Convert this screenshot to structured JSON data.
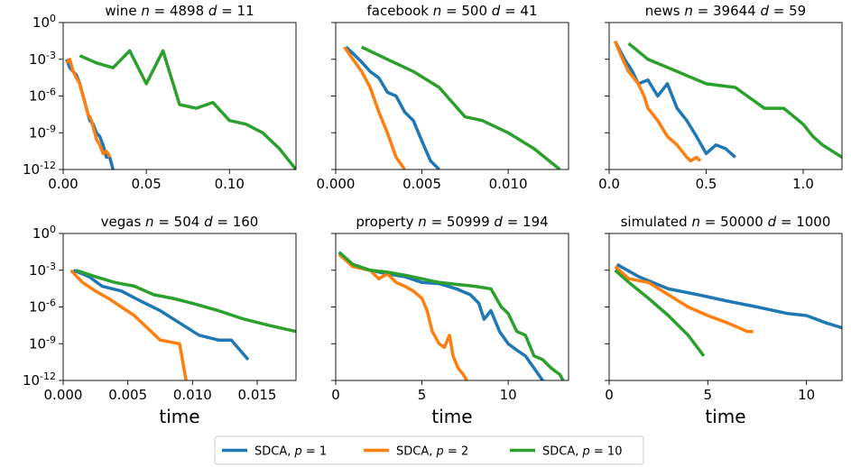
{
  "chart_data": [
    {
      "type": "line",
      "title": "wine n = 4898 d = 11",
      "title_parts": {
        "name": "wine ",
        "n": "4898",
        "d": "11"
      },
      "xlabel": "",
      "ylabel": "",
      "yscale": "log",
      "xlim": [
        0,
        0.14
      ],
      "ylim": [
        1e-12,
        1
      ],
      "xticks": [
        0,
        0.05,
        0.1
      ],
      "xtick_labels": [
        "0.00",
        "0.05",
        "0.10"
      ],
      "yticks": [
        1,
        0.001,
        1e-06,
        1e-09,
        1e-12
      ],
      "ytick_labels": [
        "10^0",
        "10^-3",
        "10^-6",
        "10^-9",
        "10^-12"
      ],
      "series": [
        {
          "color": "#1f77b4",
          "x": [
            0.002,
            0.004,
            0.006,
            0.008,
            0.01,
            0.012,
            0.014,
            0.016,
            0.018,
            0.02,
            0.022,
            0.024,
            0.026,
            0.028,
            0.03
          ],
          "y": [
            0.001,
            0.0002,
            0.0001,
            5e-05,
            1e-05,
            1e-06,
            1e-07,
            1e-08,
            5e-09,
            1e-09,
            5e-10,
            1e-10,
            1e-11,
            1e-11,
            1e-12
          ]
        },
        {
          "color": "#ff7f0e",
          "x": [
            0.002,
            0.004,
            0.006,
            0.008,
            0.01,
            0.012,
            0.013,
            0.014,
            0.015,
            0.016,
            0.017,
            0.018,
            0.019,
            0.02,
            0.022,
            0.024,
            0.026,
            0.027,
            0.028
          ],
          "y": [
            0.0005,
            0.001,
            0.0001,
            3e-05,
            1e-05,
            1e-06,
            3e-07,
            1e-07,
            3e-08,
            2e-08,
            1e-08,
            3e-09,
            1e-09,
            3e-10,
            1e-10,
            2e-11,
            3e-11,
            2e-11,
            1e-11
          ]
        },
        {
          "color": "#2ca02c",
          "x": [
            0.01,
            0.02,
            0.03,
            0.04,
            0.05,
            0.06,
            0.07,
            0.08,
            0.09,
            0.1,
            0.11,
            0.12,
            0.13,
            0.14
          ],
          "y": [
            0.002,
            0.0005,
            0.0002,
            0.005,
            1e-05,
            0.005,
            2e-07,
            1e-07,
            3e-07,
            1e-08,
            5e-09,
            1e-09,
            5e-11,
            1e-12
          ]
        }
      ]
    },
    {
      "type": "line",
      "title": "facebook n = 500 d = 41",
      "title_parts": {
        "name": "facebook ",
        "n": "500",
        "d": "41"
      },
      "xlabel": "",
      "ylabel": "",
      "yscale": "log",
      "xlim": [
        0,
        0.0135
      ],
      "ylim": [
        1e-12,
        1
      ],
      "xticks": [
        0,
        0.005,
        0.01
      ],
      "xtick_labels": [
        "0.000",
        "0.005",
        "0.010"
      ],
      "yticks": [
        1,
        0.001,
        1e-06,
        1e-09,
        1e-12
      ],
      "ytick_labels": [
        "",
        "",
        "",
        "",
        ""
      ],
      "series": [
        {
          "color": "#1f77b4",
          "x": [
            0.0006,
            0.001,
            0.0015,
            0.002,
            0.0025,
            0.003,
            0.0035,
            0.004,
            0.0045,
            0.005,
            0.0055,
            0.006
          ],
          "y": [
            0.01,
            0.003,
            0.0006,
            0.0001,
            3e-05,
            2e-06,
            1e-06,
            5e-08,
            1e-08,
            2e-10,
            5e-12,
            1e-12
          ]
        },
        {
          "color": "#ff7f0e",
          "x": [
            0.0005,
            0.001,
            0.0015,
            0.002,
            0.0025,
            0.003,
            0.0035,
            0.004
          ],
          "y": [
            0.01,
            0.001,
            0.0001,
            5e-06,
            5e-08,
            1e-09,
            1e-11,
            1e-12
          ]
        },
        {
          "color": "#2ca02c",
          "x": [
            0.0015,
            0.003,
            0.0045,
            0.006,
            0.0075,
            0.0085,
            0.01,
            0.0115,
            0.013
          ],
          "y": [
            0.01,
            0.001,
            0.0001,
            5e-06,
            2e-08,
            1e-08,
            1e-09,
            5e-11,
            1e-12
          ]
        }
      ]
    },
    {
      "type": "line",
      "title": "news n = 39644 d = 59",
      "title_parts": {
        "name": "news ",
        "n": "39644",
        "d": "59"
      },
      "xlabel": "",
      "ylabel": "",
      "yscale": "log",
      "xlim": [
        0,
        1.2
      ],
      "ylim": [
        1e-12,
        1
      ],
      "xticks": [
        0,
        0.5,
        1.0
      ],
      "xtick_labels": [
        "0.0",
        "0.5",
        "1.0"
      ],
      "yticks": [
        1,
        0.001,
        1e-06,
        1e-09,
        1e-12
      ],
      "ytick_labels": [
        "",
        "",
        "",
        "",
        ""
      ],
      "series": [
        {
          "color": "#1f77b4",
          "x": [
            0.03,
            0.08,
            0.12,
            0.15,
            0.2,
            0.25,
            0.3,
            0.35,
            0.4,
            0.45,
            0.5,
            0.55,
            0.6,
            0.65
          ],
          "y": [
            0.03,
            0.001,
            0.0001,
            1e-05,
            2e-05,
            1e-06,
            1e-05,
            1e-07,
            1e-08,
            5e-10,
            2e-11,
            1e-10,
            5e-11,
            1e-11
          ]
        },
        {
          "color": "#ff7f0e",
          "x": [
            0.03,
            0.07,
            0.1,
            0.15,
            0.18,
            0.2,
            0.25,
            0.3,
            0.35,
            0.4,
            0.42,
            0.45,
            0.47
          ],
          "y": [
            0.03,
            0.001,
            0.0001,
            1e-05,
            1e-06,
            1e-07,
            1e-08,
            5e-10,
            1e-10,
            1e-11,
            5e-12,
            1e-11,
            5e-12
          ]
        },
        {
          "color": "#2ca02c",
          "x": [
            0.1,
            0.2,
            0.35,
            0.5,
            0.65,
            0.8,
            0.9,
            1.0,
            1.05,
            1.1,
            1.2
          ],
          "y": [
            0.02,
            0.001,
            0.0001,
            1e-05,
            5e-06,
            1e-07,
            1e-07,
            5e-09,
            5e-10,
            1e-10,
            1e-11
          ]
        }
      ]
    },
    {
      "type": "line",
      "title": "vegas n = 504 d = 160",
      "title_parts": {
        "name": "vegas ",
        "n": "504",
        "d": "160"
      },
      "xlabel": "time",
      "ylabel": "",
      "yscale": "log",
      "xlim": [
        0,
        0.018
      ],
      "ylim": [
        1e-12,
        1
      ],
      "xticks": [
        0,
        0.005,
        0.01,
        0.015
      ],
      "xtick_labels": [
        "0.000",
        "0.005",
        "0.010",
        "0.015"
      ],
      "yticks": [
        1,
        0.001,
        1e-06,
        1e-09,
        1e-12
      ],
      "ytick_labels": [
        "10^0",
        "10^-3",
        "10^-6",
        "10^-9",
        "10^-12"
      ],
      "series": [
        {
          "color": "#1f77b4",
          "x": [
            0.0008,
            0.002,
            0.003,
            0.0045,
            0.006,
            0.0075,
            0.009,
            0.0105,
            0.012,
            0.013,
            0.0143
          ],
          "y": [
            0.001,
            0.0003,
            5e-05,
            2e-05,
            3e-06,
            5e-07,
            5e-08,
            5e-09,
            2e-09,
            2e-09,
            5e-11
          ]
        },
        {
          "color": "#ff7f0e",
          "x": [
            0.0006,
            0.0015,
            0.0025,
            0.0035,
            0.0045,
            0.0055,
            0.0065,
            0.0075,
            0.009,
            0.0095
          ],
          "y": [
            0.001,
            0.0001,
            2e-05,
            5e-06,
            1e-06,
            2e-07,
            2e-08,
            2e-09,
            1e-09,
            1e-12
          ]
        },
        {
          "color": "#2ca02c",
          "x": [
            0.001,
            0.0025,
            0.004,
            0.0055,
            0.007,
            0.0085,
            0.01,
            0.012,
            0.014,
            0.016,
            0.018
          ],
          "y": [
            0.001,
            0.0003,
            0.0001,
            5e-05,
            1e-05,
            5e-06,
            2e-06,
            5e-07,
            1e-07,
            3e-08,
            1e-08
          ]
        }
      ]
    },
    {
      "type": "line",
      "title": "property n = 50999 d = 194",
      "title_parts": {
        "name": "property ",
        "n": "50999",
        "d": "194"
      },
      "xlabel": "time",
      "ylabel": "",
      "yscale": "log",
      "xlim": [
        0,
        13.5
      ],
      "ylim": [
        1e-12,
        1
      ],
      "xticks": [
        0,
        5,
        10
      ],
      "xtick_labels": [
        "0",
        "5",
        "10"
      ],
      "yticks": [
        1,
        0.001,
        1e-06,
        1e-09,
        1e-12
      ],
      "ytick_labels": [
        "",
        "",
        "",
        "",
        ""
      ],
      "series": [
        {
          "color": "#1f77b4",
          "x": [
            0.2,
            1,
            2,
            3,
            4,
            5,
            6,
            7,
            7.8,
            8.3,
            8.6,
            9,
            9.5,
            10,
            10.5,
            11,
            11.5,
            12,
            12.3
          ],
          "y": [
            0.03,
            0.002,
            0.001,
            0.0005,
            0.0003,
            0.0001,
            8e-05,
            3e-05,
            1e-05,
            2e-06,
            1e-07,
            5e-07,
            1e-08,
            1e-09,
            3e-10,
            1e-10,
            1e-11,
            1e-12,
            5e-13
          ]
        },
        {
          "color": "#ff7f0e",
          "x": [
            0.2,
            1,
            2,
            2.5,
            3,
            3.5,
            4,
            4.5,
            5,
            5.3,
            5.6,
            6,
            6.3,
            6.6,
            6.8,
            7.1,
            7.4,
            7.6
          ],
          "y": [
            0.02,
            0.002,
            0.001,
            0.0002,
            0.0005,
            0.0001,
            5e-05,
            2e-05,
            5e-06,
            5e-07,
            1e-08,
            1e-09,
            5e-10,
            5e-09,
            1e-10,
            1e-11,
            3e-12,
            1e-12
          ]
        },
        {
          "color": "#2ca02c",
          "x": [
            0.2,
            1,
            2,
            3,
            4,
            5,
            6,
            7,
            8,
            9,
            9.6,
            10,
            10.5,
            11,
            11.5,
            12,
            12.5,
            13,
            13.3
          ],
          "y": [
            0.03,
            0.003,
            0.001,
            0.0007,
            0.0004,
            0.0002,
            0.0001,
            7e-05,
            5e-05,
            3e-05,
            1e-06,
            3e-07,
            1e-08,
            5e-09,
            1e-10,
            5e-11,
            1e-11,
            3e-12,
            5e-13
          ]
        }
      ]
    },
    {
      "type": "line",
      "title": "simulated n = 50000 d = 1000",
      "title_parts": {
        "name": "simulated ",
        "n": "50000",
        "d": "1000"
      },
      "xlabel": "time",
      "ylabel": "",
      "yscale": "log",
      "xlim": [
        0,
        11.8
      ],
      "ylim": [
        1e-12,
        1
      ],
      "xticks": [
        0,
        5,
        10
      ],
      "xtick_labels": [
        "0",
        "5",
        "10"
      ],
      "yticks": [
        1,
        0.001,
        1e-06,
        1e-09,
        1e-12
      ],
      "ytick_labels": [
        "",
        "",
        "",
        "",
        ""
      ],
      "series": [
        {
          "color": "#1f77b4",
          "x": [
            0.4,
            1.5,
            3,
            4.5,
            6,
            7.5,
            9,
            10,
            11,
            11.8
          ],
          "y": [
            0.003,
            0.0003,
            3e-05,
            1e-05,
            3e-06,
            1e-06,
            3e-07,
            2e-07,
            5e-08,
            2e-08
          ]
        },
        {
          "color": "#ff7f0e",
          "x": [
            0.3,
            1,
            2,
            3,
            4,
            5,
            6,
            7,
            7.3
          ],
          "y": [
            0.002,
            0.0002,
            0.0001,
            1e-05,
            1e-06,
            2e-07,
            5e-08,
            1e-08,
            1e-08
          ]
        },
        {
          "color": "#2ca02c",
          "x": [
            0.3,
            1,
            2,
            3,
            4,
            4.8
          ],
          "y": [
            0.001,
            0.0001,
            5e-06,
            2e-07,
            5e-09,
            1e-10
          ]
        }
      ]
    }
  ],
  "legend": {
    "placement": "bottom-center",
    "entries": [
      {
        "label": "SDCA, ",
        "p_value": "1",
        "color": "#1f77b4"
      },
      {
        "label": "SDCA, ",
        "p_value": "2",
        "color": "#ff7f0e"
      },
      {
        "label": "SDCA, ",
        "p_value": "10",
        "color": "#2ca02c"
      }
    ]
  }
}
